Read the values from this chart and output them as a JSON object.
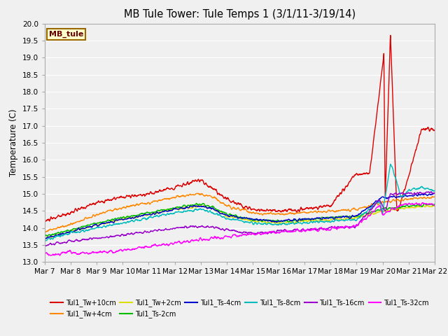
{
  "title": "MB Tule Tower: Tule Temps 1 (3/1/11-3/19/14)",
  "ylabel": "Temperature (C)",
  "ylim": [
    13.0,
    20.0
  ],
  "yticks": [
    13.0,
    13.5,
    14.0,
    14.5,
    15.0,
    15.5,
    16.0,
    16.5,
    17.0,
    17.5,
    18.0,
    18.5,
    19.0,
    19.5,
    20.0
  ],
  "bg_color": "#f0f0f0",
  "plot_bg_color": "#f0f0f0",
  "grid_color": "#ffffff",
  "series": [
    {
      "label": "Tul1_Tw+10cm",
      "color": "#dd0000"
    },
    {
      "label": "Tul1_Tw+4cm",
      "color": "#ff8800"
    },
    {
      "label": "Tul1_Tw+2cm",
      "color": "#dddd00"
    },
    {
      "label": "Tul1_Ts-2cm",
      "color": "#00bb00"
    },
    {
      "label": "Tul1_Ts-4cm",
      "color": "#0000cc"
    },
    {
      "label": "Tul1_Ts-8cm",
      "color": "#00bbbb"
    },
    {
      "label": "Tul1_Ts-16cm",
      "color": "#9900cc"
    },
    {
      "label": "Tul1_Ts-32cm",
      "color": "#ff00ff"
    }
  ],
  "legend_box": {
    "text": "MB_tule",
    "bg_color": "#ffffcc",
    "border_color": "#996600",
    "text_color": "#660000"
  }
}
